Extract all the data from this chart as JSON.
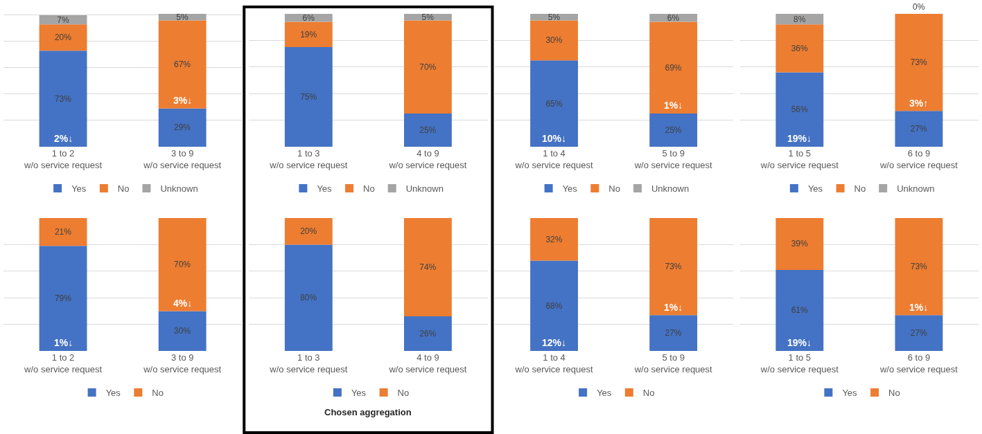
{
  "chart_data": [
    {
      "type": "bar",
      "stacked": true,
      "categories": [
        "1 to 2 w/o service request",
        "3 to 9 w/o service request"
      ],
      "series": [
        {
          "name": "Yes",
          "color": "#4472c4",
          "values": [
            73,
            29
          ],
          "value_labels": [
            "73%",
            "29%"
          ]
        },
        {
          "name": "No",
          "color": "#ed7d31",
          "values": [
            20,
            67
          ],
          "value_labels": [
            "20%",
            "67%"
          ]
        },
        {
          "name": "Unknown",
          "color": "#a5a5a5",
          "values": [
            7,
            5
          ],
          "value_labels": [
            "7%",
            "5%"
          ]
        }
      ],
      "tick_labels": "x",
      "grid": "y",
      "legend": "bottom",
      "annotations": [
        "2%↓",
        "3%↓"
      ]
    },
    {
      "type": "bar",
      "stacked": true,
      "categories": [
        "1 to 3 w/o service request",
        "4 to 9 w/o service request"
      ],
      "series": [
        {
          "name": "Yes",
          "color": "#4472c4",
          "values": [
            75,
            25
          ],
          "value_labels": [
            "75%",
            "25%"
          ]
        },
        {
          "name": "No",
          "color": "#ed7d31",
          "values": [
            19,
            70
          ],
          "value_labels": [
            "19%",
            "70%"
          ]
        },
        {
          "name": "Unknown",
          "color": "#a5a5a5",
          "values": [
            6,
            5
          ],
          "value_labels": [
            "6%",
            "5%"
          ]
        }
      ],
      "tick_labels": "x",
      "grid": "y",
      "legend": "bottom"
    },
    {
      "type": "bar",
      "stacked": true,
      "categories": [
        "1 to 4 w/o service request",
        "5 to 9 w/o service request"
      ],
      "series": [
        {
          "name": "Yes",
          "color": "#4472c4",
          "values": [
            65,
            25
          ],
          "value_labels": [
            "65%",
            "25%"
          ]
        },
        {
          "name": "No",
          "color": "#ed7d31",
          "values": [
            30,
            69
          ],
          "value_labels": [
            "30%",
            "69%"
          ]
        },
        {
          "name": "Unknown",
          "color": "#a5a5a5",
          "values": [
            5,
            6
          ],
          "value_labels": [
            "5%",
            "6%"
          ]
        }
      ],
      "tick_labels": "x",
      "grid": "y",
      "legend": "bottom",
      "annotations": [
        "10%↓",
        "1%↓"
      ]
    },
    {
      "type": "bar",
      "stacked": true,
      "categories": [
        "1 to 5 w/o service request",
        "6 to 9 w/o service request"
      ],
      "series": [
        {
          "name": "Yes",
          "color": "#4472c4",
          "values": [
            56,
            27
          ],
          "value_labels": [
            "56%",
            "27%"
          ]
        },
        {
          "name": "No",
          "color": "#ed7d31",
          "values": [
            36,
            73
          ],
          "value_labels": [
            "36%",
            "73%"
          ]
        },
        {
          "name": "Unknown",
          "color": "#a5a5a5",
          "values": [
            8,
            0
          ],
          "value_labels": [
            "8%",
            "0%"
          ]
        }
      ],
      "tick_labels": "x",
      "grid": "y",
      "legend": "bottom",
      "annotations": [
        "19%↓",
        "3%↑"
      ]
    },
    {
      "type": "bar",
      "stacked": true,
      "categories": [
        "1 to 2 w/o service request",
        "3 to 9 w/o service request"
      ],
      "series": [
        {
          "name": "Yes",
          "color": "#4472c4",
          "values": [
            79,
            30
          ],
          "value_labels": [
            "79%",
            "30%"
          ]
        },
        {
          "name": "No",
          "color": "#ed7d31",
          "values": [
            21,
            70
          ],
          "value_labels": [
            "21%",
            "70%"
          ]
        }
      ],
      "tick_labels": "x",
      "grid": "y",
      "legend": "bottom",
      "annotations": [
        "1%↓",
        "4%↓"
      ]
    },
    {
      "type": "bar",
      "stacked": true,
      "categories": [
        "1 to 3 w/o service request",
        "4 to 9 w/o service request"
      ],
      "series": [
        {
          "name": "Yes",
          "color": "#4472c4",
          "values": [
            80,
            26
          ],
          "value_labels": [
            "80%",
            "26%"
          ]
        },
        {
          "name": "No",
          "color": "#ed7d31",
          "values": [
            20,
            74
          ],
          "value_labels": [
            "20%",
            "74%"
          ]
        }
      ],
      "tick_labels": "x",
      "grid": "y",
      "legend": "bottom",
      "xlabel": "Chosen aggregation"
    },
    {
      "type": "bar",
      "stacked": true,
      "categories": [
        "1 to 4 w/o service request",
        "5 to 9 w/o service request"
      ],
      "series": [
        {
          "name": "Yes",
          "color": "#4472c4",
          "values": [
            68,
            27
          ],
          "value_labels": [
            "68%",
            "27%"
          ]
        },
        {
          "name": "No",
          "color": "#ed7d31",
          "values": [
            32,
            73
          ],
          "value_labels": [
            "32%",
            "73%"
          ]
        }
      ],
      "tick_labels": "x",
      "grid": "y",
      "legend": "bottom",
      "annotations": [
        "12%↓",
        "1%↓"
      ]
    },
    {
      "type": "bar",
      "stacked": true,
      "categories": [
        "1 to 5 w/o service request",
        "6 to 9 w/o service request"
      ],
      "series": [
        {
          "name": "Yes",
          "color": "#4472c4",
          "values": [
            61,
            27
          ],
          "value_labels": [
            "61%",
            "27%"
          ]
        },
        {
          "name": "No",
          "color": "#ed7d31",
          "values": [
            39,
            73
          ],
          "value_labels": [
            "39%",
            "73%"
          ]
        }
      ],
      "tick_labels": "x",
      "grid": "y",
      "legend": "bottom",
      "annotations": [
        "19%↓",
        "1%↓"
      ]
    }
  ]
}
